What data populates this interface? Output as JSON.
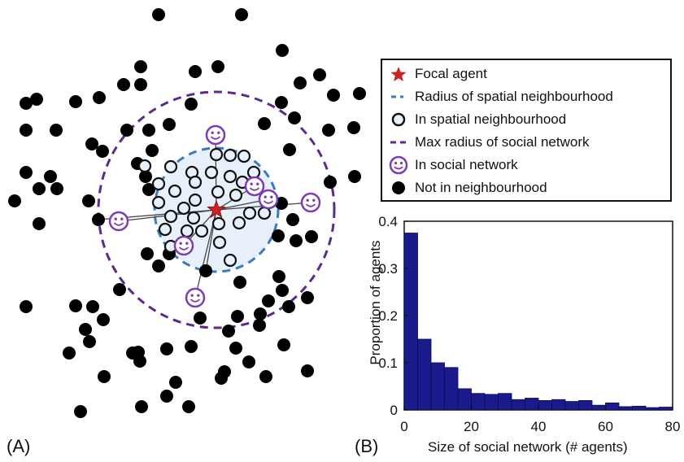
{
  "panel_labels": {
    "a": "(A)",
    "b": "(B)"
  },
  "legend": {
    "items": [
      {
        "label": "Focal agent",
        "icon": "red-star-icon",
        "color": "#cc2222"
      },
      {
        "label": "Radius of spatial neighbourhood",
        "icon": "blue-dashed-line-icon",
        "color": "#3a7bbf"
      },
      {
        "label": "In spatial neighbourhood",
        "icon": "open-circle-icon",
        "color": "#111111"
      },
      {
        "label": "Max radius of social network",
        "icon": "purple-dashed-line-icon",
        "color": "#5b2a8e"
      },
      {
        "label": "In social network",
        "icon": "smiley-icon",
        "color": "#7b3db5"
      },
      {
        "label": "Not in neighbourhood",
        "icon": "black-dot-icon",
        "color": "#000000"
      }
    ]
  },
  "chart_data": [
    {
      "type": "diagram",
      "panel": "(A)",
      "focal_agent": {
        "icon": "red-star-icon"
      },
      "counts": {
        "not_in_neighbourhood": 107,
        "in_spatial_neighbourhood": 30,
        "in_social_network": 9
      }
    },
    {
      "type": "bar",
      "panel": "(B)",
      "xlabel": "Size of social network (# agents)",
      "ylabel": "Proportion of agents",
      "xlim": [
        0,
        80
      ],
      "ylim": [
        0,
        0.4
      ],
      "xticks": [
        0,
        20,
        40,
        60,
        80
      ],
      "yticks": [
        0,
        0.1,
        0.2,
        0.3,
        0.4
      ],
      "ytick_labels": [
        "0",
        "0.1",
        "0.2",
        "0.3",
        "0.4"
      ],
      "bin_width": 4,
      "bin_starts": [
        0,
        4,
        8,
        12,
        16,
        20,
        24,
        28,
        32,
        36,
        40,
        44,
        48,
        52,
        56,
        60,
        64,
        68,
        72,
        76
      ],
      "values": [
        0.375,
        0.15,
        0.1,
        0.09,
        0.045,
        0.035,
        0.033,
        0.035,
        0.022,
        0.025,
        0.02,
        0.022,
        0.018,
        0.02,
        0.01,
        0.015,
        0.007,
        0.008,
        0.005,
        0.006
      ],
      "bar_color": "#1a1a8c"
    }
  ]
}
